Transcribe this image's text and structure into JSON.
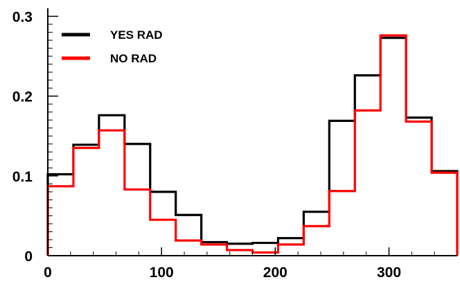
{
  "chart_data": {
    "type": "line",
    "style": "step-histogram",
    "bin_edges": [
      0,
      22.5,
      45,
      67.5,
      90,
      112.5,
      135,
      157.5,
      180,
      202.5,
      225,
      247.5,
      270,
      292.5,
      315,
      337.5,
      360
    ],
    "xlim": [
      0,
      360
    ],
    "ylim": [
      0,
      0.31
    ],
    "x_ticks": [
      0,
      100,
      200,
      300
    ],
    "x_tick_labels": [
      "0",
      "100",
      "200",
      "300"
    ],
    "y_ticks": [
      0,
      0.1,
      0.2,
      0.3
    ],
    "y_tick_labels": [
      "0",
      "0.1",
      "0.2",
      "0.3"
    ],
    "grid": false,
    "legend_placement": "top-left",
    "series": [
      {
        "name": "YES RAD",
        "color": "#000000",
        "values": [
          0.102,
          0.139,
          0.176,
          0.14,
          0.08,
          0.051,
          0.017,
          0.015,
          0.016,
          0.022,
          0.055,
          0.169,
          0.226,
          0.273,
          0.173,
          0.106
        ]
      },
      {
        "name": "NO RAD",
        "color": "#ff0000",
        "values": [
          0.087,
          0.135,
          0.157,
          0.083,
          0.045,
          0.019,
          0.014,
          0.007,
          0.004,
          0.014,
          0.037,
          0.081,
          0.182,
          0.276,
          0.168,
          0.104
        ]
      }
    ]
  }
}
